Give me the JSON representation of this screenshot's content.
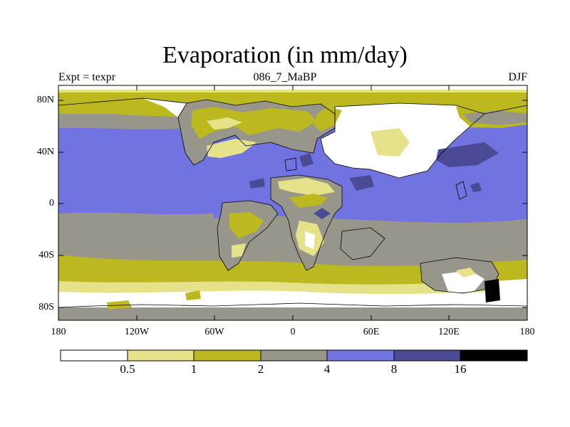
{
  "title": "Evaporation (in mm/day)",
  "subtitle": {
    "left": "Expt = texpr",
    "center": "086_7_MaBP",
    "right": "DJF"
  },
  "axes": {
    "lat_labels": [
      "80N",
      "40N",
      "0",
      "40S",
      "80S"
    ],
    "lon_labels": [
      "180",
      "120W",
      "60W",
      "0",
      "60E",
      "120E",
      "180"
    ]
  },
  "colorbar": {
    "boundaries": [
      "0.5",
      "1",
      "2",
      "4",
      "8",
      "16"
    ],
    "colors": [
      "#ffffff",
      "#e6e289",
      "#bcb81f",
      "#98968a",
      "#7174e0",
      "#4a4b94",
      "#000000"
    ]
  },
  "colors": {
    "ocean_high": "#7174e0",
    "ocean_max": "#4a4b94",
    "mid": "#98968a",
    "low": "#bcb81f",
    "very_low": "#e6e289",
    "none": "#ffffff"
  }
}
